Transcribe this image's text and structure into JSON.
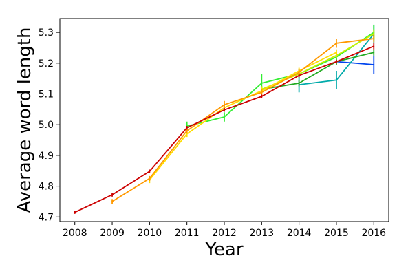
{
  "chart_data": {
    "type": "line",
    "title": "",
    "xlabel": "Year",
    "ylabel": "Average word length",
    "xlim": [
      2007.6,
      2016.4
    ],
    "ylim": [
      4.685,
      5.345
    ],
    "x_ticks": [
      2008,
      2009,
      2010,
      2011,
      2012,
      2013,
      2014,
      2015,
      2016
    ],
    "y_ticks": [
      4.7,
      4.8,
      4.9,
      5.0,
      5.1,
      5.2,
      5.3
    ],
    "y_tick_labels": [
      "4.7",
      "4.8",
      "4.9",
      "5.0",
      "5.1",
      "5.2",
      "5.3"
    ],
    "grid": false,
    "legend": "none",
    "series": [
      {
        "color": "#0044ee",
        "x": [
          2015,
          2016
        ],
        "y": [
          5.205,
          5.195
        ],
        "err": [
          0.005,
          0.03
        ]
      },
      {
        "color": "#00aaaa",
        "x": [
          2014,
          2015,
          2016
        ],
        "y": [
          5.13,
          5.145,
          5.295
        ],
        "err": [
          0.025,
          0.03,
          0.03
        ]
      },
      {
        "color": "#22aa22",
        "x": [
          2013,
          2014,
          2015,
          2016
        ],
        "y": [
          5.115,
          5.135,
          5.205,
          5.235
        ],
        "err": [
          0.01,
          0.01,
          0.01,
          0.01
        ]
      },
      {
        "color": "#33ee33",
        "x": [
          2011,
          2012,
          2013,
          2014,
          2015,
          2016
        ],
        "y": [
          4.995,
          5.025,
          5.135,
          5.165,
          5.22,
          5.3
        ],
        "err": [
          0.015,
          0.015,
          0.03,
          0.015,
          0.015,
          0.025
        ]
      },
      {
        "color": "#ccee00",
        "x": [
          2013,
          2014,
          2015,
          2016
        ],
        "y": [
          5.115,
          5.165,
          5.225,
          5.295
        ],
        "err": [
          0.01,
          0.01,
          0.01,
          0.015
        ]
      },
      {
        "color": "#ffdd00",
        "x": [
          2010,
          2011,
          2012,
          2013,
          2014,
          2015
        ],
        "y": [
          4.82,
          4.97,
          5.055,
          5.11,
          5.175,
          5.235
        ],
        "err": [
          0.01,
          0.01,
          0.01,
          0.01,
          0.01,
          0.01
        ]
      },
      {
        "color": "#ff9900",
        "x": [
          2009,
          2010,
          2011,
          2012,
          2013,
          2014,
          2015,
          2016
        ],
        "y": [
          4.75,
          4.825,
          4.98,
          5.065,
          5.105,
          5.17,
          5.265,
          5.28
        ],
        "err": [
          0.008,
          0.008,
          0.008,
          0.012,
          0.01,
          0.012,
          0.015,
          0.012
        ]
      },
      {
        "color": "#cc0000",
        "x": [
          2008,
          2009,
          2010,
          2011,
          2012,
          2013,
          2014,
          2015,
          2016
        ],
        "y": [
          4.715,
          4.772,
          4.848,
          4.99,
          5.048,
          5.092,
          5.16,
          5.205,
          5.255
        ],
        "err": [
          0.005,
          0.006,
          0.006,
          0.006,
          0.006,
          0.006,
          0.006,
          0.006,
          0.01
        ]
      }
    ]
  }
}
